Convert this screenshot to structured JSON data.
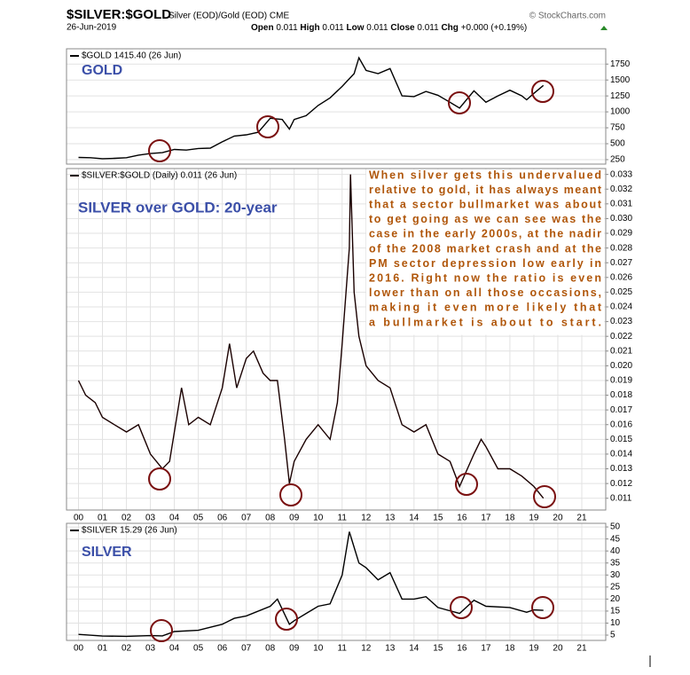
{
  "header": {
    "symbol": "$SILVER:$GOLD",
    "description": "Silver (EOD)/Gold (EOD) CME",
    "source": "© StockCharts.com",
    "date": "26-Jun-2019",
    "quote": [
      {
        "label": "Open",
        "value": "0.011"
      },
      {
        "label": "High",
        "value": "0.011"
      },
      {
        "label": "Low",
        "value": "0.011"
      },
      {
        "label": "Close",
        "value": "0.011"
      },
      {
        "label": "Chg",
        "value": "+0.000 (+0.19%)"
      }
    ]
  },
  "chart_data": [
    {
      "type": "line",
      "title": "GOLD",
      "xlim": [
        -0.5,
        22
      ],
      "ylim": [
        180,
        1990
      ],
      "yticks": [
        250,
        500,
        750,
        1000,
        1250,
        1500,
        1750
      ],
      "grid": true,
      "x": [
        0,
        0.5,
        1,
        1.5,
        2,
        2.5,
        3,
        3.5,
        4,
        4.5,
        5,
        5.5,
        6,
        6.5,
        7,
        7.5,
        8,
        8.5,
        8.8,
        9,
        9.5,
        10,
        10.5,
        11,
        11.5,
        11.7,
        12,
        12.5,
        13,
        13.5,
        14,
        14.5,
        15,
        15.5,
        15.9,
        16.5,
        17,
        17.5,
        18,
        18.5,
        18.7,
        19,
        19.4
      ],
      "series": [
        {
          "name": "$GOLD 1415.40 (26 Jun)",
          "color": "#000000",
          "values": [
            285,
            280,
            265,
            270,
            280,
            320,
            345,
            360,
            410,
            400,
            425,
            430,
            530,
            620,
            640,
            680,
            900,
            880,
            730,
            880,
            940,
            1100,
            1220,
            1400,
            1600,
            1850,
            1650,
            1600,
            1680,
            1250,
            1240,
            1320,
            1260,
            1150,
            1060,
            1330,
            1150,
            1250,
            1340,
            1250,
            1190,
            1290,
            1415.4
          ]
        }
      ]
    },
    {
      "type": "line",
      "title": "SILVER over GOLD: 20-year",
      "xlim": [
        -0.5,
        22
      ],
      "ylim": [
        0.0102,
        0.0334
      ],
      "yticks": [
        0.011,
        0.012,
        0.013,
        0.014,
        0.015,
        0.016,
        0.017,
        0.018,
        0.019,
        {
          "value": 0.02,
          "label": "0.020"
        },
        0.021,
        0.022,
        0.023,
        0.024,
        0.025,
        0.026,
        0.027,
        0.028,
        0.029,
        {
          "value": 0.03,
          "label": "0.030"
        },
        0.031,
        0.032,
        0.033
      ],
      "xticks": [
        {
          "value": 0,
          "label": "00"
        },
        {
          "value": 1,
          "label": "01"
        },
        {
          "value": 2,
          "label": "02"
        },
        {
          "value": 3,
          "label": "03"
        },
        {
          "value": 4,
          "label": "04"
        },
        {
          "value": 5,
          "label": "05"
        },
        {
          "value": 6,
          "label": "06"
        },
        {
          "value": 7,
          "label": "07"
        },
        {
          "value": 8,
          "label": "08"
        },
        {
          "value": 9,
          "label": "09"
        },
        10,
        11,
        12,
        13,
        14,
        15,
        16,
        17,
        18,
        19,
        20,
        21
      ],
      "grid": true,
      "annotation": [
        "When silver gets this undervalued",
        "relative to gold, it has always meant",
        "that a sector bullmarket was about",
        "to get going as we can see was the",
        "case in the early 2000s, at the nadir",
        "of the 2008 market crash and at the",
        "PM sector depression low early in",
        "2016. Right now the ratio is even",
        "lower than on all those occasions,",
        "making it even more likely that",
        "a bullmarket is about to start."
      ],
      "x": [
        0,
        0.3,
        0.7,
        1,
        1.5,
        2,
        2.5,
        3,
        3.5,
        3.8,
        4,
        4.3,
        4.6,
        5,
        5.5,
        6,
        6.3,
        6.6,
        7,
        7.3,
        7.7,
        8,
        8.3,
        8.6,
        8.8,
        9,
        9.5,
        10,
        10.5,
        10.8,
        11,
        11.3,
        11.35,
        11.5,
        11.7,
        12,
        12.5,
        13,
        13.3,
        13.5,
        14,
        14.5,
        15,
        15.5,
        15.9,
        16.5,
        16.8,
        17,
        17.5,
        18,
        18.5,
        19,
        19.4
      ],
      "series": [
        {
          "name": "$SILVER:$GOLD (Daily) 0.011 (26 Jun)",
          "color": "#1a0000",
          "values": [
            0.019,
            0.018,
            0.0175,
            0.0165,
            0.016,
            0.0155,
            0.016,
            0.014,
            0.013,
            0.0135,
            0.0155,
            0.0185,
            0.016,
            0.0165,
            0.016,
            0.0185,
            0.0215,
            0.0185,
            0.0205,
            0.021,
            0.0195,
            0.019,
            0.019,
            0.015,
            0.012,
            0.0135,
            0.015,
            0.016,
            0.015,
            0.0175,
            0.0215,
            0.028,
            0.033,
            0.025,
            0.022,
            0.02,
            0.019,
            0.0185,
            0.017,
            0.016,
            0.0155,
            0.016,
            0.014,
            0.0135,
            0.0118,
            0.014,
            0.015,
            0.0145,
            0.013,
            0.013,
            0.0125,
            0.0118,
            0.011
          ]
        }
      ]
    },
    {
      "type": "line",
      "title": "SILVER",
      "xlim": [
        -0.5,
        22
      ],
      "ylim": [
        2.8,
        51.5
      ],
      "yticks": [
        5,
        10,
        15,
        20,
        25,
        30,
        35,
        40,
        45,
        50
      ],
      "xticks": [
        {
          "value": 0,
          "label": "00"
        },
        {
          "value": 1,
          "label": "01"
        },
        {
          "value": 2,
          "label": "02"
        },
        {
          "value": 3,
          "label": "03"
        },
        {
          "value": 4,
          "label": "04"
        },
        {
          "value": 5,
          "label": "05"
        },
        {
          "value": 6,
          "label": "06"
        },
        {
          "value": 7,
          "label": "07"
        },
        {
          "value": 8,
          "label": "08"
        },
        {
          "value": 9,
          "label": "09"
        },
        10,
        11,
        12,
        13,
        14,
        15,
        16,
        17,
        18,
        19,
        20,
        21
      ],
      "grid": true,
      "x": [
        0,
        1,
        2,
        3,
        3.5,
        4,
        5,
        6,
        6.5,
        7,
        8,
        8.3,
        8.8,
        9,
        9.5,
        10,
        10.5,
        11,
        11.3,
        11.7,
        12,
        12.5,
        13,
        13.5,
        14,
        14.5,
        15,
        15.9,
        16.5,
        17,
        18,
        18.7,
        19,
        19.4
      ],
      "series": [
        {
          "name": "$SILVER 15.29 (26 Jun)",
          "color": "#000000",
          "values": [
            5.3,
            4.6,
            4.5,
            4.8,
            4.7,
            6.5,
            7,
            9.5,
            12,
            13,
            17,
            20,
            9.5,
            11,
            14,
            17,
            18,
            30,
            48,
            35,
            33,
            28,
            31,
            20,
            20,
            21,
            16.5,
            14,
            19.5,
            17,
            16.5,
            14.5,
            15.5,
            15.29
          ]
        }
      ]
    }
  ]
}
